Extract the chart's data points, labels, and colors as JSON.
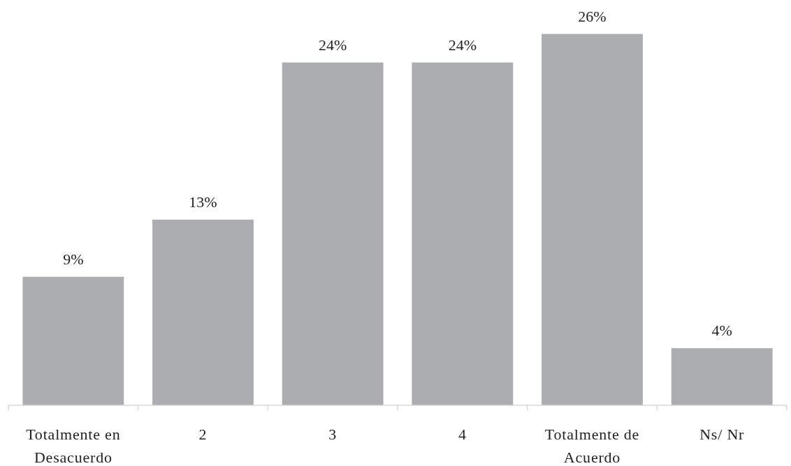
{
  "chart_data": {
    "type": "bar",
    "categories": [
      "Totalmente en Desacuerdo",
      "2",
      "3",
      "4",
      "Totalmente de Acuerdo",
      "Ns/ Nr"
    ],
    "values": [
      9,
      13,
      24,
      24,
      26,
      4
    ],
    "value_labels": [
      "9%",
      "13%",
      "24%",
      "24%",
      "26%",
      "4%"
    ],
    "color": "#acadb1"
  }
}
